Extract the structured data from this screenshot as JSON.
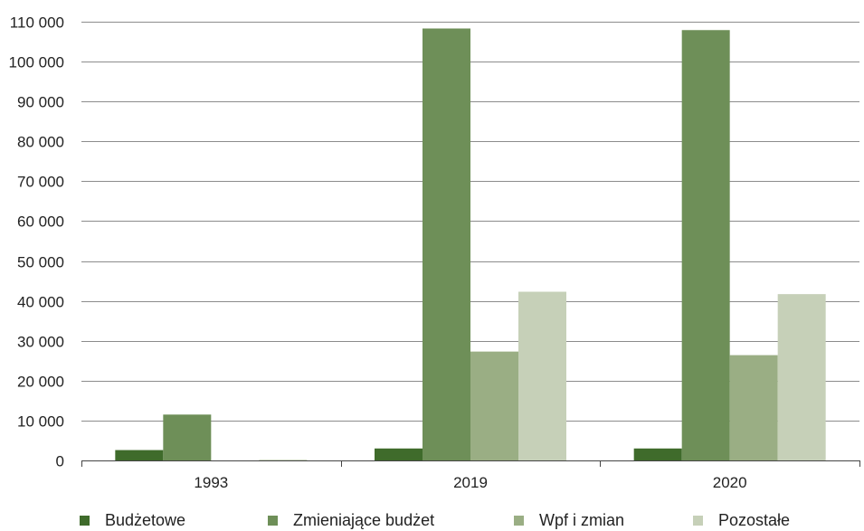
{
  "chart_data": {
    "type": "bar",
    "title": "",
    "xlabel": "",
    "ylabel": "",
    "categories": [
      "1993",
      "2019",
      "2020"
    ],
    "ylim": [
      0,
      110000
    ],
    "yticks": [
      0,
      10000,
      20000,
      30000,
      40000,
      50000,
      60000,
      70000,
      80000,
      90000,
      100000,
      110000
    ],
    "ytick_labels": [
      "0",
      "10 000",
      "20 000",
      "30 000",
      "40 000",
      "50 000",
      "60 000",
      "70 000",
      "80 000",
      "90 000",
      "100 000",
      "110 000"
    ],
    "grid": true,
    "legend_position": "bottom",
    "series": [
      {
        "name": "Budżetowe",
        "color": "#3f6b2b",
        "values": [
          2600,
          3000,
          3000
        ]
      },
      {
        "name": "Zmieniające budżet",
        "color": "#6e8f58",
        "values": [
          11500,
          108300,
          107900
        ]
      },
      {
        "name": "Wpf i zmian",
        "color": "#9aae84",
        "values": [
          0,
          27300,
          26400
        ]
      },
      {
        "name": "Pozostałe",
        "color": "#c6d0b8",
        "values": [
          200,
          42300,
          41700
        ]
      }
    ]
  }
}
